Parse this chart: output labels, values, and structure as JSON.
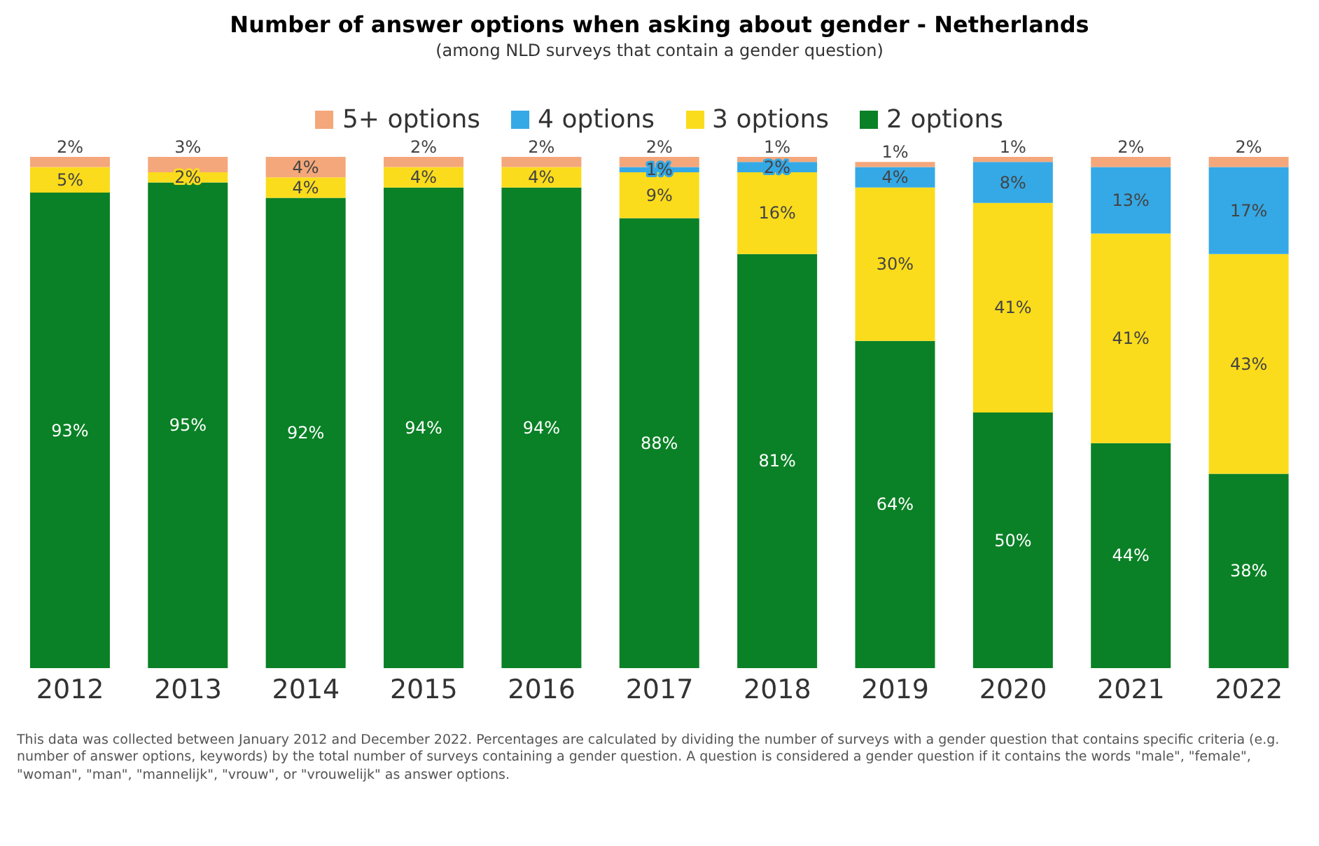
{
  "chart_data": {
    "type": "bar",
    "title": "Number of answer options when asking about gender - Netherlands",
    "subtitle": "(among NLD surveys that contain a gender question)",
    "categories": [
      "2012",
      "2013",
      "2014",
      "2015",
      "2016",
      "2017",
      "2018",
      "2019",
      "2020",
      "2021",
      "2022"
    ],
    "stacked": true,
    "legend": "top",
    "grid": false,
    "tick_labels": "x",
    "series": [
      {
        "name": "2 options",
        "color": "#0a8126",
        "values": [
          93,
          95,
          92,
          94,
          94,
          88,
          81,
          64,
          50,
          44,
          38
        ],
        "value_labels": [
          "93%",
          "95%",
          "92%",
          "94%",
          "94%",
          "88%",
          "81%",
          "64%",
          "50%",
          "44%",
          "38%"
        ]
      },
      {
        "name": "3 options",
        "color": "#fbdc1c",
        "values": [
          5,
          2,
          4,
          4,
          4,
          9,
          16,
          30,
          41,
          41,
          43
        ],
        "value_labels": [
          "5%",
          "2%",
          "4%",
          "4%",
          "4%",
          "9%",
          "16%",
          "30%",
          "41%",
          "41%",
          "43%"
        ]
      },
      {
        "name": "4 options",
        "color": "#35a9e6",
        "values": [
          0,
          0,
          0,
          0,
          0,
          1,
          2,
          4,
          8,
          13,
          17
        ],
        "value_labels": [
          null,
          null,
          null,
          null,
          null,
          "1%",
          "2%",
          "4%",
          "8%",
          "13%",
          "17%"
        ]
      },
      {
        "name": "5+ options",
        "color": "#f4a77a",
        "values": [
          2,
          3,
          4,
          2,
          2,
          2,
          1,
          1,
          1,
          2,
          2
        ],
        "value_labels": [
          "2%",
          "3%",
          "4%",
          "2%",
          "2%",
          "2%",
          "1%",
          "1%",
          "1%",
          "2%",
          "2%"
        ]
      }
    ],
    "annotations": [
      "This data was collected between January 2012 and December 2022. Percentages are calculated by dividing the number of surveys with a gender question that contains specific criteria (e.g. number of answer options, keywords) by the total number of surveys containing a gender question. A question is considered a gender question if it contains the words \"male\", \"female\", \"woman\", \"man\", \"mannelijk\", \"vrouw\", or \"vrouwelijk\" as answer options."
    ]
  }
}
